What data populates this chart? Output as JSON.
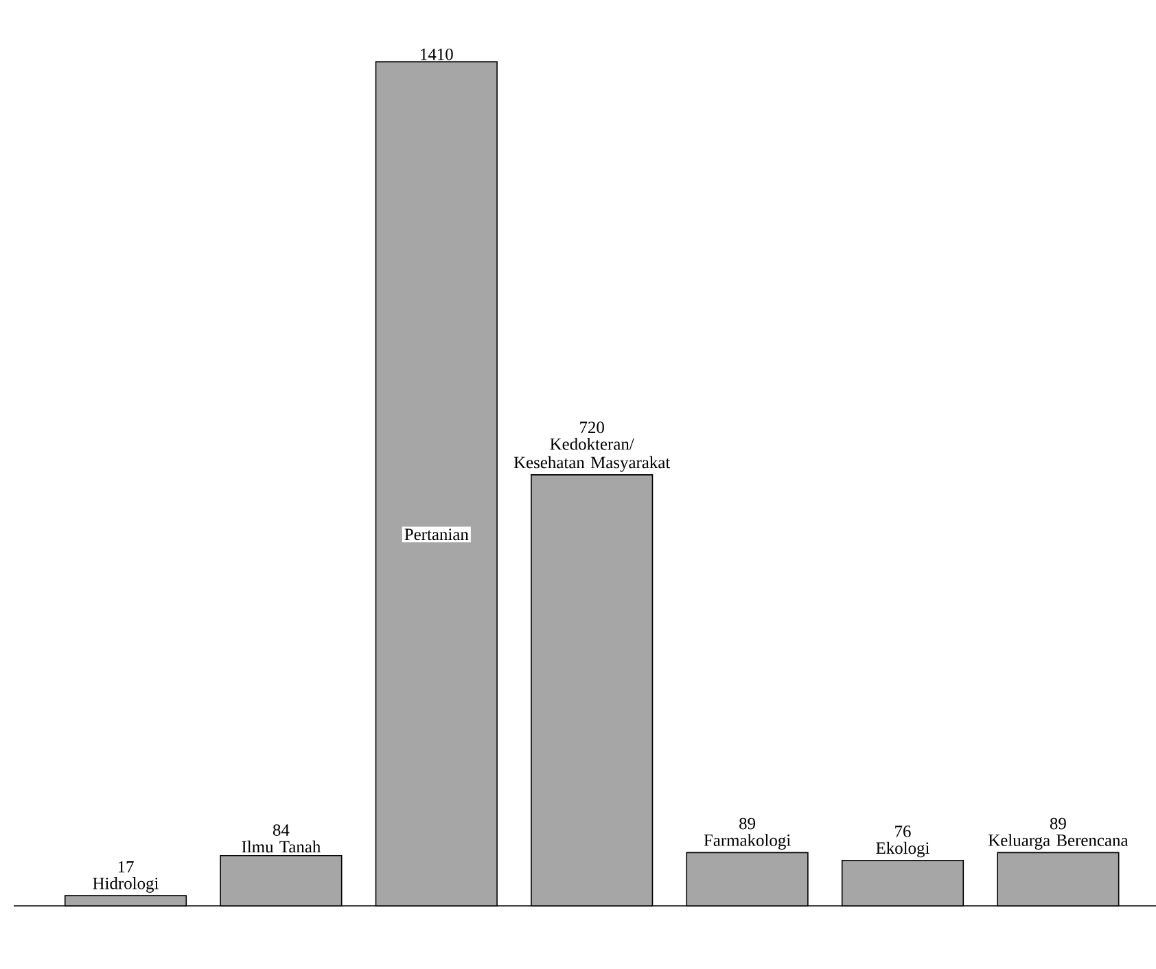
{
  "chart_data": {
    "type": "bar",
    "categories": [
      "Hidrologi",
      "Ilmu Tanah",
      "Pertanian",
      "Kedokteran/ Kesehatan Masyarakat",
      "Farmakologi",
      "Ekologi",
      "Keluarga Berencana"
    ],
    "values": [
      17,
      84,
      1410,
      720,
      89,
      76,
      89
    ],
    "color": "#a6a6a6",
    "data_labels": true
  }
}
